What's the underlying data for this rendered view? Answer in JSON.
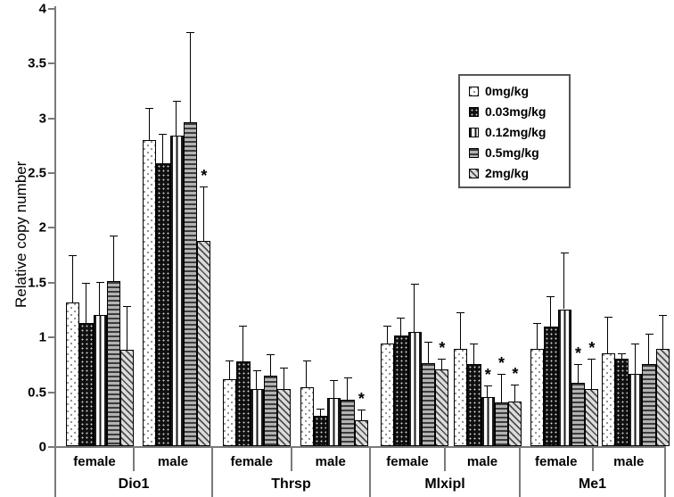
{
  "figure": {
    "ylabel": "Relative copy number",
    "sig_symbol": "*"
  },
  "chart_data": {
    "type": "bar",
    "title": "",
    "xlabel": "",
    "ylabel": "Relative copy number",
    "ylim": [
      0,
      4
    ],
    "ytick_step": 0.5,
    "yticks": [
      "0",
      "0.5",
      "1",
      "1.5",
      "2",
      "2.5",
      "3",
      "3.5",
      "4"
    ],
    "grid": false,
    "legend_position": "upper-right",
    "legend_entries": [
      {
        "label": "0mg/kg",
        "pattern": "light-dots"
      },
      {
        "label": "0.03mg/kg",
        "pattern": "black-dots"
      },
      {
        "label": "0.12mg/kg",
        "pattern": "vertical-stripes"
      },
      {
        "label": "0.5mg/kg",
        "pattern": "horizontal-stripes"
      },
      {
        "label": "2mg/kg",
        "pattern": "diagonal-stripes"
      }
    ],
    "genes": [
      "Dio1",
      "Thrsp",
      "Mlxipl",
      "Me1"
    ],
    "sexes": [
      "female",
      "male"
    ],
    "error_bars": "upper only, SD",
    "groups": [
      {
        "gene": "Dio1",
        "sex": "female",
        "values": [
          1.31,
          1.12,
          1.2,
          1.51,
          0.88
        ],
        "errors": [
          0.43,
          0.37,
          0.3,
          0.41,
          0.4
        ],
        "sig": [
          false,
          false,
          false,
          false,
          false
        ]
      },
      {
        "gene": "Dio1",
        "sex": "male",
        "values": [
          2.79,
          2.58,
          2.83,
          2.96,
          1.87
        ],
        "errors": [
          0.3,
          0.27,
          0.32,
          0.82,
          0.5
        ],
        "sig": [
          false,
          false,
          false,
          false,
          true
        ]
      },
      {
        "gene": "Thrsp",
        "sex": "female",
        "values": [
          0.61,
          0.77,
          0.52,
          0.64,
          0.52
        ],
        "errors": [
          0.17,
          0.33,
          0.17,
          0.2,
          0.2
        ],
        "sig": [
          false,
          false,
          false,
          false,
          false
        ]
      },
      {
        "gene": "Thrsp",
        "sex": "male",
        "values": [
          0.54,
          0.28,
          0.44,
          0.42,
          0.24
        ],
        "errors": [
          0.24,
          0.06,
          0.16,
          0.21,
          0.09
        ],
        "sig": [
          false,
          false,
          false,
          false,
          true
        ]
      },
      {
        "gene": "Mlxipl",
        "sex": "female",
        "values": [
          0.94,
          1.01,
          1.04,
          0.76,
          0.7
        ],
        "errors": [
          0.16,
          0.16,
          0.44,
          0.19,
          0.1
        ],
        "sig": [
          false,
          false,
          false,
          false,
          true
        ]
      },
      {
        "gene": "Mlxipl",
        "sex": "male",
        "values": [
          0.89,
          0.75,
          0.45,
          0.4,
          0.41
        ],
        "errors": [
          0.33,
          0.19,
          0.1,
          0.26,
          0.15
        ],
        "sig": [
          false,
          false,
          true,
          true,
          true
        ]
      },
      {
        "gene": "Me1",
        "sex": "female",
        "values": [
          0.89,
          1.09,
          1.25,
          0.58,
          0.52
        ],
        "errors": [
          0.23,
          0.28,
          0.52,
          0.17,
          0.28
        ],
        "sig": [
          false,
          false,
          false,
          true,
          true
        ]
      },
      {
        "gene": "Me1",
        "sex": "male",
        "values": [
          0.85,
          0.8,
          0.66,
          0.75,
          0.89
        ],
        "errors": [
          0.33,
          0.05,
          0.28,
          0.28,
          0.31
        ],
        "sig": [
          false,
          false,
          false,
          false,
          false
        ]
      }
    ]
  }
}
